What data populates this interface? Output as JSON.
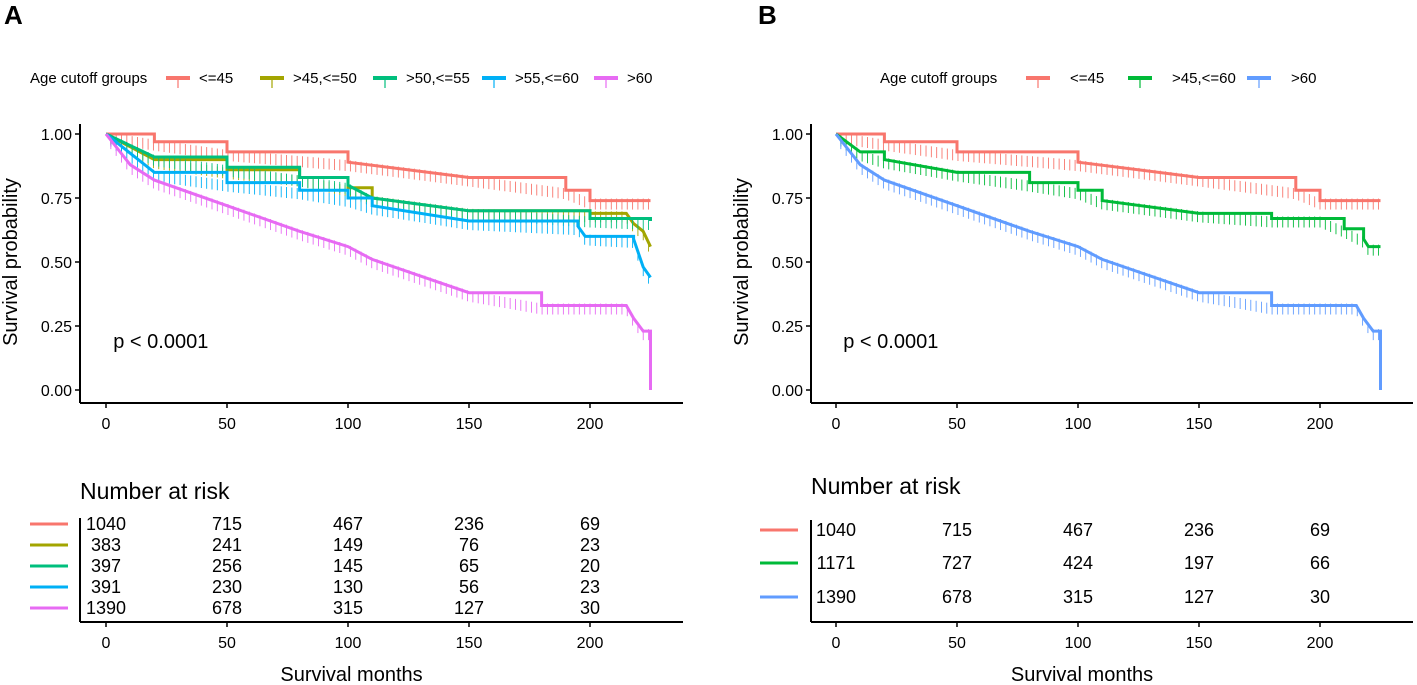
{
  "chart_data": [
    {
      "type": "line",
      "panel": "A",
      "legend_title": "Age cutoff groups",
      "legend_placement": "top",
      "ylabel": "Survival probability",
      "xlabel": "Survival months",
      "xlim": [
        -10,
        235
      ],
      "ylim": [
        0,
        1
      ],
      "xticks": [
        0,
        50,
        100,
        150,
        200
      ],
      "yticks": [
        0.0,
        0.25,
        0.5,
        0.75,
        1.0
      ],
      "ytick_labels": [
        "0.00",
        "0.25",
        "0.50",
        "0.75",
        "1.00"
      ],
      "annotation": "p < 0.0001",
      "series": [
        {
          "name": "<=45",
          "color": "#F8766D",
          "points": [
            [
              0,
              1
            ],
            [
              20,
              0.97
            ],
            [
              50,
              0.93
            ],
            [
              100,
              0.89
            ],
            [
              150,
              0.83
            ],
            [
              190,
              0.78
            ],
            [
              200,
              0.74
            ],
            [
              225,
              0.74
            ]
          ]
        },
        {
          "name": ">45,<=50",
          "color": "#A3A500",
          "points": [
            [
              0,
              1
            ],
            [
              20,
              0.9
            ],
            [
              50,
              0.86
            ],
            [
              80,
              0.83
            ],
            [
              100,
              0.79
            ],
            [
              110,
              0.75
            ],
            [
              150,
              0.7
            ],
            [
              200,
              0.69
            ],
            [
              215,
              0.69
            ],
            [
              218,
              0.65
            ],
            [
              222,
              0.62
            ],
            [
              225,
              0.56
            ]
          ]
        },
        {
          "name": ">50,<=55",
          "color": "#00BF7D",
          "points": [
            [
              0,
              1
            ],
            [
              20,
              0.91
            ],
            [
              50,
              0.87
            ],
            [
              80,
              0.83
            ],
            [
              100,
              0.8
            ],
            [
              110,
              0.75
            ],
            [
              150,
              0.7
            ],
            [
              200,
              0.67
            ],
            [
              225,
              0.66
            ]
          ]
        },
        {
          "name": ">55,<=60",
          "color": "#00B0F6",
          "points": [
            [
              0,
              1
            ],
            [
              20,
              0.85
            ],
            [
              50,
              0.81
            ],
            [
              80,
              0.78
            ],
            [
              100,
              0.75
            ],
            [
              110,
              0.72
            ],
            [
              150,
              0.66
            ],
            [
              195,
              0.64
            ],
            [
              198,
              0.6
            ],
            [
              218,
              0.59
            ],
            [
              222,
              0.48
            ],
            [
              225,
              0.44
            ]
          ]
        },
        {
          "name": ">60",
          "color": "#E76BF3",
          "points": [
            [
              0,
              1
            ],
            [
              10,
              0.88
            ],
            [
              20,
              0.82
            ],
            [
              50,
              0.72
            ],
            [
              80,
              0.62
            ],
            [
              100,
              0.56
            ],
            [
              110,
              0.51
            ],
            [
              150,
              0.38
            ],
            [
              180,
              0.33
            ],
            [
              200,
              0.33
            ],
            [
              215,
              0.33
            ],
            [
              218,
              0.28
            ],
            [
              222,
              0.23
            ],
            [
              225,
              0.23
            ],
            [
              225,
              0.0
            ]
          ]
        }
      ],
      "risk_table": {
        "title": "Number at risk",
        "rows": [
          {
            "color": "#F8766D",
            "values": [
              "1040",
              "715",
              "467",
              "236",
              "69"
            ]
          },
          {
            "color": "#A3A500",
            "values": [
              "383",
              "241",
              "149",
              "76",
              "23"
            ]
          },
          {
            "color": "#00BF7D",
            "values": [
              "397",
              "256",
              "145",
              "65",
              "20"
            ]
          },
          {
            "color": "#00B0F6",
            "values": [
              "391",
              "230",
              "130",
              "56",
              "23"
            ]
          },
          {
            "color": "#E76BF3",
            "values": [
              "1390",
              "678",
              "315",
              "127",
              "30"
            ]
          }
        ]
      }
    },
    {
      "type": "line",
      "panel": "B",
      "legend_title": "Age cutoff groups",
      "legend_placement": "top",
      "ylabel": "Survival probability",
      "xlabel": "Survival months",
      "xlim": [
        -10,
        235
      ],
      "ylim": [
        0,
        1
      ],
      "xticks": [
        0,
        50,
        100,
        150,
        200
      ],
      "yticks": [
        0.0,
        0.25,
        0.5,
        0.75,
        1.0
      ],
      "ytick_labels": [
        "0.00",
        "0.25",
        "0.50",
        "0.75",
        "1.00"
      ],
      "annotation": "p < 0.0001",
      "series": [
        {
          "name": "<=45",
          "color": "#F8766D",
          "points": [
            [
              0,
              1
            ],
            [
              20,
              0.97
            ],
            [
              50,
              0.93
            ],
            [
              100,
              0.89
            ],
            [
              150,
              0.83
            ],
            [
              190,
              0.78
            ],
            [
              200,
              0.74
            ],
            [
              225,
              0.74
            ]
          ]
        },
        {
          "name": ">45,<=60",
          "color": "#00BA38",
          "points": [
            [
              0,
              1
            ],
            [
              10,
              0.93
            ],
            [
              20,
              0.9
            ],
            [
              50,
              0.85
            ],
            [
              80,
              0.81
            ],
            [
              100,
              0.78
            ],
            [
              110,
              0.74
            ],
            [
              150,
              0.69
            ],
            [
              180,
              0.67
            ],
            [
              200,
              0.67
            ],
            [
              210,
              0.63
            ],
            [
              218,
              0.59
            ],
            [
              220,
              0.56
            ],
            [
              225,
              0.56
            ]
          ]
        },
        {
          "name": ">60",
          "color": "#619CFF",
          "points": [
            [
              0,
              1
            ],
            [
              10,
              0.88
            ],
            [
              20,
              0.82
            ],
            [
              50,
              0.72
            ],
            [
              80,
              0.62
            ],
            [
              100,
              0.56
            ],
            [
              110,
              0.51
            ],
            [
              150,
              0.38
            ],
            [
              180,
              0.33
            ],
            [
              200,
              0.33
            ],
            [
              215,
              0.33
            ],
            [
              218,
              0.28
            ],
            [
              222,
              0.23
            ],
            [
              225,
              0.23
            ],
            [
              225,
              0.0
            ]
          ]
        }
      ],
      "risk_table": {
        "title": "Number at risk",
        "rows": [
          {
            "color": "#F8766D",
            "values": [
              "1040",
              "715",
              "467",
              "236",
              "69"
            ]
          },
          {
            "color": "#00BA38",
            "values": [
              "1171",
              "727",
              "424",
              "197",
              "66"
            ]
          },
          {
            "color": "#619CFF",
            "values": [
              "1390",
              "678",
              "315",
              "127",
              "30"
            ]
          }
        ]
      }
    }
  ]
}
